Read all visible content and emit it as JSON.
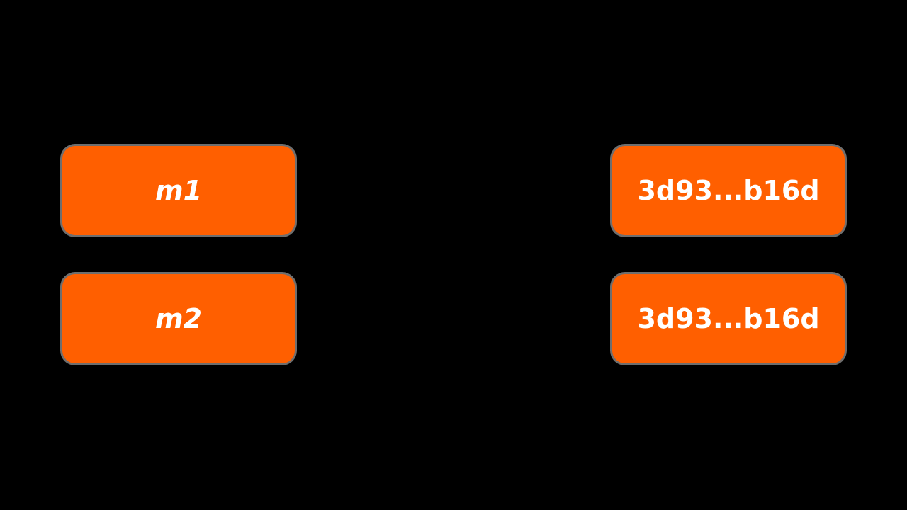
{
  "colors": {
    "background": "#000000",
    "box_fill": "#ff5f00",
    "box_text": "#ffffff"
  },
  "messages": [
    {
      "label": "m1"
    },
    {
      "label": "m2"
    }
  ],
  "hashes": [
    {
      "label": "3d93...b16d"
    },
    {
      "label": "3d93...b16d"
    }
  ]
}
